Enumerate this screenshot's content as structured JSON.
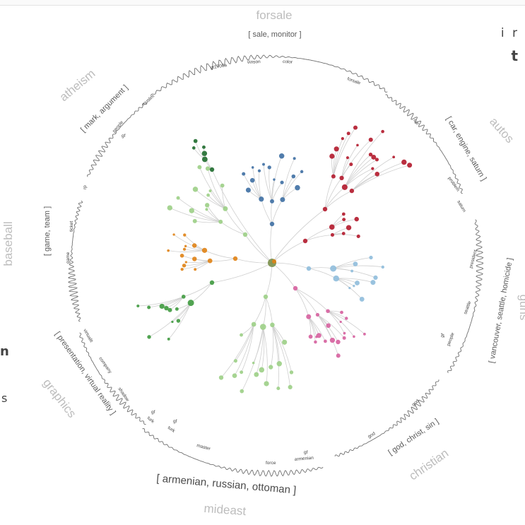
{
  "categories": [
    {
      "id": "forsale",
      "label": "forsale",
      "keywords": "[ sale, monitor ]",
      "words": [
        "gt1706a",
        "vinson",
        "color",
        "forsale"
      ]
    },
    {
      "id": "autos",
      "label": "autos",
      "keywords": "[ car, engine, saturn ]",
      "words": [
        "car",
        "problem",
        "saturn"
      ]
    },
    {
      "id": "guns",
      "label": "guns",
      "keywords": "[ vancouver, seattle, homicide ]",
      "words": [
        "president",
        "seattle",
        "people",
        "gf"
      ]
    },
    {
      "id": "christian",
      "label": "christian",
      "keywords": "[ god, christ, sin ]",
      "words": [
        "god",
        "god"
      ]
    },
    {
      "id": "mideast",
      "label": "mideast",
      "keywords": "[ armenian, russian, ottoman ]",
      "words": [
        "force",
        "armenian",
        "gf",
        "master",
        "turk",
        "turk",
        "gf",
        "gf"
      ]
    },
    {
      "id": "graphics",
      "label": "graphics",
      "keywords": "[ presentation, virtual reality ]",
      "words": [
        "shadow",
        "company",
        "virtualit"
      ]
    },
    {
      "id": "baseball",
      "label": "baseball",
      "keywords": "[ game, team ]",
      "words": [
        "ticket",
        "rp",
        "game"
      ]
    },
    {
      "id": "atheism",
      "label": "atheism",
      "keywords": "[ mark, argument ]",
      "words": [
        "muslim",
        "people",
        "gf"
      ]
    }
  ],
  "edge_text": {
    "right_top": "i r",
    "right_bold": "t",
    "left_bold": "n",
    "left_small": "s"
  },
  "colors": {
    "background": "#ffffff",
    "category_label": "#bdbdbd",
    "edges": "#cfcfcf",
    "waveform": "#707070",
    "cluster_blue": "#3e6fa3",
    "cluster_red": "#b2182b",
    "cluster_green": "#3f9a3f",
    "cluster_lightgreen": "#9ccf86",
    "cluster_orange": "#e08214",
    "cluster_lightblue": "#8fbcdb",
    "cluster_pink": "#d6619e",
    "cluster_darkgreen": "#1f6b2e"
  }
}
